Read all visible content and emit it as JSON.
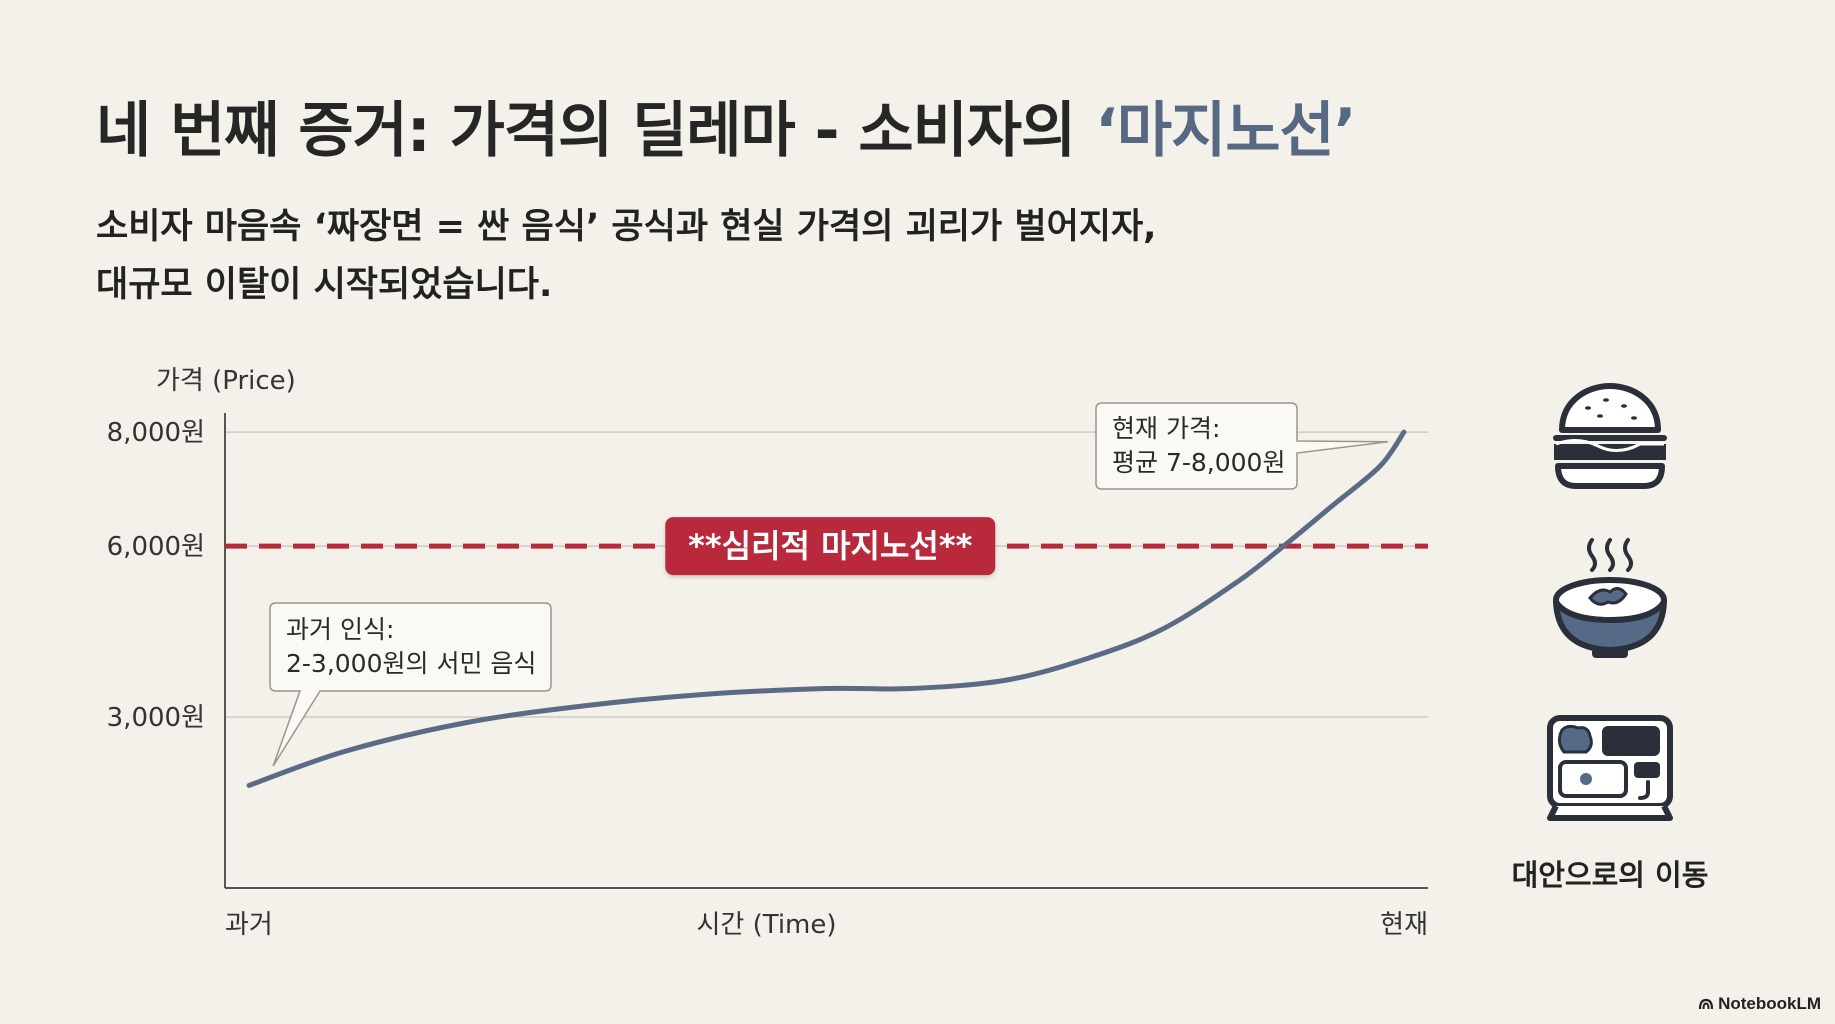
{
  "slide": {
    "title_main": "네 번째 증거: 가격의 딜레마 - 소비자의 ",
    "title_accent": "‘마지노선’",
    "subtitle_line1": "소비자 마음속 ‘짜장면 = 싼 음식’ 공식과 현실 가격의 괴리가 벌어지자,",
    "subtitle_line2": "대규모 이탈이 시작되었습니다."
  },
  "chart_data": {
    "type": "line",
    "ylabel": "가격 (Price)",
    "xlabel": "시간 (Time)",
    "x_tick_labels": [
      "과거",
      "현재"
    ],
    "y_ticks": [
      {
        "value": 3000,
        "label": "3,000원"
      },
      {
        "value": 6000,
        "label": "6,000원"
      },
      {
        "value": 8000,
        "label": "8,000원"
      }
    ],
    "ylim": [
      0,
      8300
    ],
    "xlim": [
      0,
      1
    ],
    "grid": true,
    "series": [
      {
        "values": [
          [
            0.02,
            1800
          ],
          [
            0.1,
            2400
          ],
          [
            0.2,
            2900
          ],
          [
            0.3,
            3200
          ],
          [
            0.4,
            3400
          ],
          [
            0.5,
            3500
          ],
          [
            0.57,
            3500
          ],
          [
            0.65,
            3650
          ],
          [
            0.72,
            4050
          ],
          [
            0.78,
            4550
          ],
          [
            0.84,
            5350
          ],
          [
            0.88,
            6000
          ],
          [
            0.92,
            6700
          ],
          [
            0.96,
            7400
          ],
          [
            0.98,
            8000
          ]
        ],
        "color": "#5b6b86"
      }
    ],
    "threshold": {
      "value": 6000,
      "label": "**심리적 마지노선**",
      "color": "#b8293a"
    },
    "annotations": [
      {
        "lines": [
          "과거 인식:",
          "2-3,000원의 서민 음식"
        ],
        "point": [
          0.04,
          2000
        ]
      },
      {
        "lines": [
          "현재 가격:",
          "평균 7-8,000원"
        ],
        "point": [
          0.97,
          7900
        ]
      }
    ]
  },
  "alternatives": {
    "label": "대안으로의 이동",
    "icons": [
      "hamburger-icon",
      "soup-bowl-icon",
      "lunchbox-icon"
    ]
  },
  "brand": {
    "name": "NotebookLM"
  }
}
